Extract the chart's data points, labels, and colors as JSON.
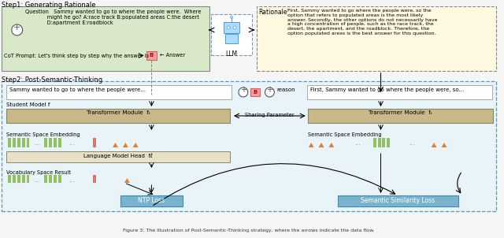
{
  "title": "Figure 3: The illustration of Post-Semantic-Thinking strategy, where the arrows indicate the data flow.",
  "step1_label": "Step1: Generating Rationale",
  "step2_label": "Step2: Post-Semantic-Thinking",
  "question_text": "Question   Sammy wanted to go to where the people were.  Where\n             might he go? A:race track B:populated areas C:the desert\n             D:apartment E:roadblock",
  "cot_prompt": "CoT Prompt: Let's think step by step why the answer is",
  "answer_label": "B",
  "answer_text": "Answer",
  "rationale_label": "Rationale",
  "rationale_text": "First, Sammy wanted to go where the people were, so the\noption that refers to populated areas is the most likely\nanswer. Secondly, the other options do not necessarily have\na high concentration of people, such as the race track, the\ndesert, the apartment, and the roadblock. Therefore, the\noption populated areas is the best answer for this question.",
  "llm_label": "LLM",
  "student_input_left": "Sammy wanted to go to where the people were...",
  "student_b_label": "B",
  "student_reason": "reason",
  "student_model_label": "Student Model f",
  "transformer_left": "Transformer Module  fₜ",
  "transformer_right": "Transformer Module  fₜ",
  "sharing_param": "Sharing Parameter",
  "semantic_embed_left": "Semantic Space Embedding",
  "semantic_embed_right": "Semantic Space Embedding",
  "lm_head": "Language Model Head  fℓ",
  "vocab_result": "Vocabulary Space Result",
  "ntp_loss": "NTP Loss",
  "semantic_loss": "Semantic Similarity Loss",
  "rationale_input_right": "First, Sammy wanted to go where the people were, so...",
  "bg_color": "#f5f5f5",
  "step1_box_left_color": "#d8e8c8",
  "step1_box_right_color": "#fef9e0",
  "step2_outer_color": "#e8f4f8",
  "transformer_color": "#c8b88a",
  "ntp_loss_color": "#7ab3d0",
  "semantic_loss_color": "#7ab3d0",
  "green_bar_color": "#90c060",
  "red_bar_color": "#e07070",
  "orange_triangle_color": "#e08030",
  "orange_triangle_right_color": "#e08030"
}
